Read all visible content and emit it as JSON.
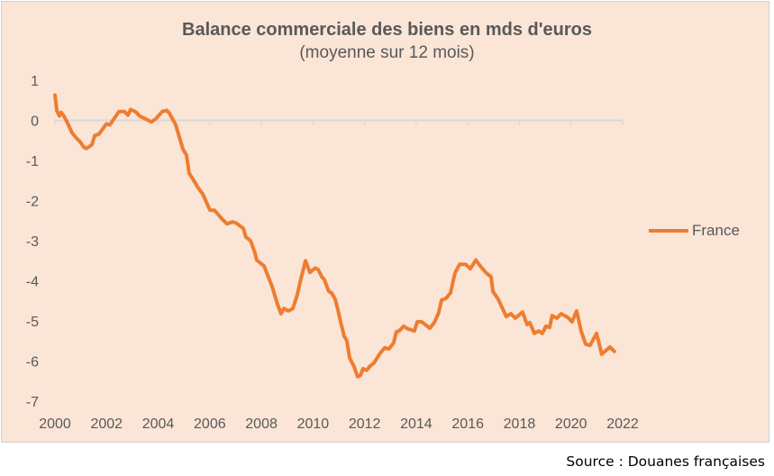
{
  "chart_data": {
    "type": "line",
    "title": "Balance commerciale des biens en mds d'euros",
    "subtitle": "(moyenne sur 12 mois)",
    "xlabel": "",
    "ylabel": "",
    "xlim": [
      2000,
      2022
    ],
    "ylim": [
      -7,
      1
    ],
    "x_ticks": [
      "2000",
      "2002",
      "2004",
      "2006",
      "2008",
      "2010",
      "2012",
      "2014",
      "2016",
      "2018",
      "2020",
      "2022"
    ],
    "y_ticks": [
      "1",
      "0",
      "-1",
      "-2",
      "-3",
      "-4",
      "-5",
      "-6",
      "-7"
    ],
    "grid": false,
    "legend_position": "right",
    "color": "#ed7d31",
    "series": [
      {
        "name": "France",
        "x": [
          2000.0,
          2000.07,
          2000.17,
          2000.24,
          2000.38,
          2000.52,
          2000.66,
          2000.84,
          2000.98,
          2001.12,
          2001.22,
          2001.43,
          2001.54,
          2001.71,
          2001.99,
          2002.13,
          2002.48,
          2002.69,
          2002.83,
          2002.93,
          2003.11,
          2003.28,
          2003.74,
          2003.91,
          2004.16,
          2004.33,
          2004.43,
          2004.68,
          2004.96,
          2005.1,
          2005.2,
          2005.38,
          2005.55,
          2005.73,
          2006.01,
          2006.18,
          2006.49,
          2006.67,
          2006.88,
          2007.02,
          2007.3,
          2007.4,
          2007.58,
          2007.75,
          2007.82,
          2008.1,
          2008.41,
          2008.62,
          2008.76,
          2008.87,
          2009.04,
          2009.22,
          2009.39,
          2009.5,
          2009.71,
          2009.88,
          2010.09,
          2010.2,
          2010.34,
          2010.44,
          2010.61,
          2010.72,
          2010.86,
          2010.96,
          2011.07,
          2011.21,
          2011.31,
          2011.42,
          2011.59,
          2011.73,
          2011.84,
          2011.94,
          2012.08,
          2012.19,
          2012.36,
          2012.47,
          2012.6,
          2012.78,
          2012.95,
          2013.13,
          2013.23,
          2013.34,
          2013.51,
          2013.69,
          2013.93,
          2014.04,
          2014.21,
          2014.53,
          2014.7,
          2014.87,
          2014.98,
          2015.15,
          2015.33,
          2015.5,
          2015.68,
          2015.92,
          2016.1,
          2016.31,
          2016.48,
          2016.72,
          2016.9,
          2016.97,
          2017.18,
          2017.49,
          2017.67,
          2017.84,
          2018.12,
          2018.3,
          2018.4,
          2018.58,
          2018.75,
          2018.89,
          2019.03,
          2019.17,
          2019.27,
          2019.45,
          2019.62,
          2019.87,
          2020.04,
          2020.22,
          2020.39,
          2020.57,
          2020.74,
          2020.99,
          2021.19,
          2021.51,
          2021.68
        ],
        "y": [
          0.63,
          0.25,
          0.11,
          0.2,
          0.07,
          -0.11,
          -0.31,
          -0.45,
          -0.54,
          -0.67,
          -0.7,
          -0.61,
          -0.38,
          -0.34,
          -0.09,
          -0.11,
          0.22,
          0.22,
          0.13,
          0.27,
          0.22,
          0.11,
          -0.04,
          0.04,
          0.22,
          0.25,
          0.18,
          -0.11,
          -0.72,
          -0.87,
          -1.32,
          -1.5,
          -1.68,
          -1.84,
          -2.24,
          -2.24,
          -2.47,
          -2.58,
          -2.53,
          -2.56,
          -2.69,
          -2.91,
          -3.0,
          -3.3,
          -3.48,
          -3.63,
          -4.13,
          -4.57,
          -4.82,
          -4.69,
          -4.75,
          -4.69,
          -4.35,
          -4.04,
          -3.5,
          -3.79,
          -3.68,
          -3.72,
          -3.9,
          -3.97,
          -4.26,
          -4.3,
          -4.46,
          -4.71,
          -5.02,
          -5.38,
          -5.49,
          -5.92,
          -6.14,
          -6.39,
          -6.35,
          -6.19,
          -6.23,
          -6.14,
          -6.05,
          -5.94,
          -5.81,
          -5.67,
          -5.7,
          -5.54,
          -5.27,
          -5.25,
          -5.13,
          -5.2,
          -5.25,
          -5.02,
          -5.02,
          -5.18,
          -5.04,
          -4.8,
          -4.48,
          -4.44,
          -4.3,
          -3.81,
          -3.59,
          -3.59,
          -3.7,
          -3.48,
          -3.63,
          -3.81,
          -3.9,
          -4.26,
          -4.46,
          -4.89,
          -4.82,
          -4.93,
          -4.78,
          -5.09,
          -5.04,
          -5.31,
          -5.25,
          -5.31,
          -5.13,
          -5.16,
          -4.87,
          -4.93,
          -4.82,
          -4.91,
          -5.02,
          -4.75,
          -5.25,
          -5.58,
          -5.61,
          -5.31,
          -5.83,
          -5.65,
          -5.76
        ]
      }
    ]
  },
  "source": "Source : Douanes françaises"
}
